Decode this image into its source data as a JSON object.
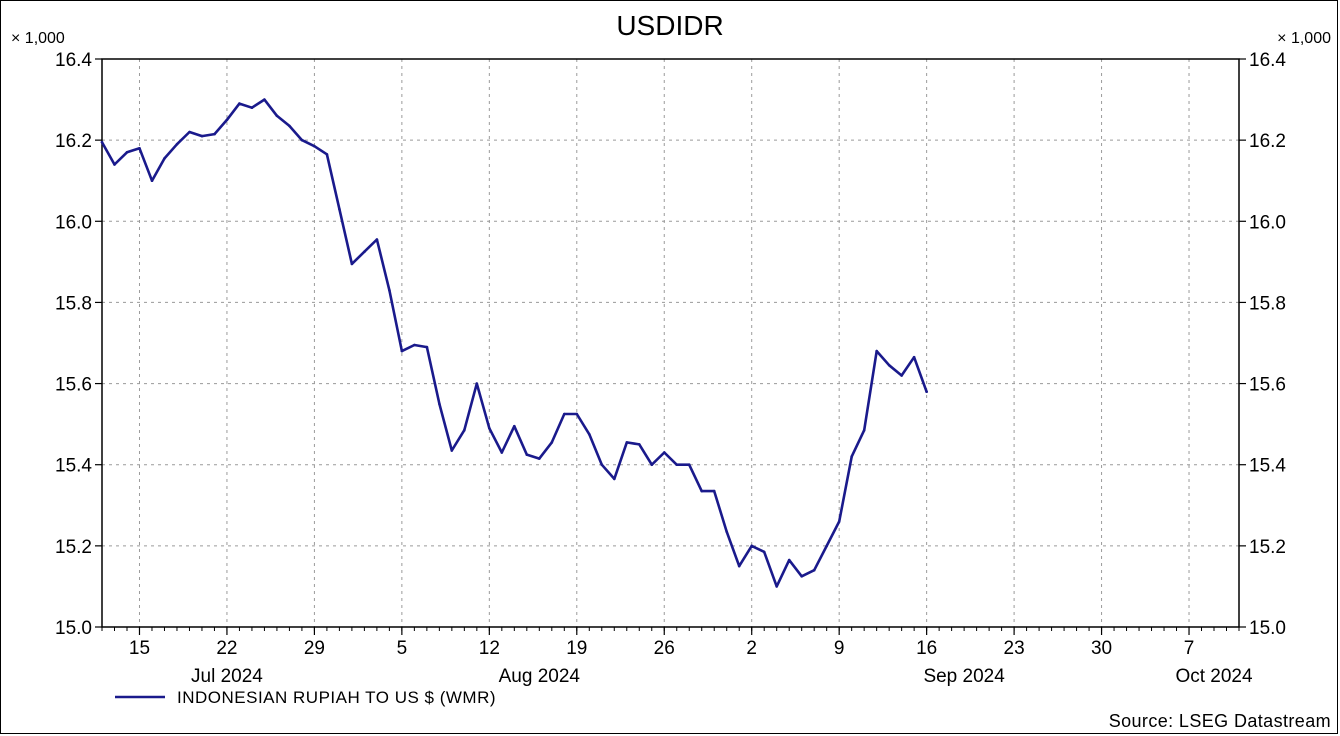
{
  "chart_data": {
    "type": "line",
    "title": "USDIDR",
    "y_multiplier_label": "× 1,000",
    "ylim": [
      15.0,
      16.4
    ],
    "y_ticks": [
      "15.0",
      "15.2",
      "15.4",
      "15.6",
      "15.8",
      "16.0",
      "16.2",
      "16.4"
    ],
    "x_day_ticks": [
      {
        "label": "15",
        "date": "2024-07-15"
      },
      {
        "label": "22",
        "date": "2024-07-22"
      },
      {
        "label": "29",
        "date": "2024-07-29"
      },
      {
        "label": "5",
        "date": "2024-08-05"
      },
      {
        "label": "12",
        "date": "2024-08-12"
      },
      {
        "label": "19",
        "date": "2024-08-19"
      },
      {
        "label": "26",
        "date": "2024-08-26"
      },
      {
        "label": "2",
        "date": "2024-09-02"
      },
      {
        "label": "9",
        "date": "2024-09-09"
      },
      {
        "label": "16",
        "date": "2024-09-16"
      },
      {
        "label": "23",
        "date": "2024-09-23"
      },
      {
        "label": "30",
        "date": "2024-09-30"
      },
      {
        "label": "7",
        "date": "2024-10-07"
      }
    ],
    "x_month_labels": [
      {
        "label": "Jul 2024",
        "date": "2024-07-22"
      },
      {
        "label": "Aug 2024",
        "date": "2024-08-16"
      },
      {
        "label": "Sep 2024",
        "date": "2024-09-19"
      },
      {
        "label": "Oct 2024",
        "date": "2024-10-09"
      }
    ],
    "x_range": [
      "2024-07-12",
      "2024-10-11"
    ],
    "grid": true,
    "legend_position": "bottom-left",
    "series": [
      {
        "name": "INDONESIAN RUPIAH TO US $ (WMR)",
        "color": "#1a1a8c",
        "points": [
          [
            "2024-07-12",
            16.195
          ],
          [
            "2024-07-13",
            16.14
          ],
          [
            "2024-07-14",
            16.17
          ],
          [
            "2024-07-15",
            16.18
          ],
          [
            "2024-07-16",
            16.1
          ],
          [
            "2024-07-17",
            16.155
          ],
          [
            "2024-07-18",
            16.19
          ],
          [
            "2024-07-19",
            16.22
          ],
          [
            "2024-07-20",
            16.21
          ],
          [
            "2024-07-21",
            16.215
          ],
          [
            "2024-07-22",
            16.25
          ],
          [
            "2024-07-23",
            16.29
          ],
          [
            "2024-07-24",
            16.28
          ],
          [
            "2024-07-25",
            16.3
          ],
          [
            "2024-07-26",
            16.26
          ],
          [
            "2024-07-27",
            16.235
          ],
          [
            "2024-07-28",
            16.2
          ],
          [
            "2024-07-29",
            16.185
          ],
          [
            "2024-07-30",
            16.165
          ],
          [
            "2024-07-31",
            16.03
          ],
          [
            "2024-08-01",
            15.895
          ],
          [
            "2024-08-02",
            15.925
          ],
          [
            "2024-08-03",
            15.955
          ],
          [
            "2024-08-04",
            15.83
          ],
          [
            "2024-08-05",
            15.68
          ],
          [
            "2024-08-06",
            15.695
          ],
          [
            "2024-08-07",
            15.69
          ],
          [
            "2024-08-08",
            15.55
          ],
          [
            "2024-08-09",
            15.435
          ],
          [
            "2024-08-10",
            15.485
          ],
          [
            "2024-08-11",
            15.6
          ],
          [
            "2024-08-12",
            15.49
          ],
          [
            "2024-08-13",
            15.43
          ],
          [
            "2024-08-14",
            15.495
          ],
          [
            "2024-08-15",
            15.425
          ],
          [
            "2024-08-16",
            15.415
          ],
          [
            "2024-08-17",
            15.455
          ],
          [
            "2024-08-18",
            15.525
          ],
          [
            "2024-08-19",
            15.525
          ],
          [
            "2024-08-20",
            15.475
          ],
          [
            "2024-08-21",
            15.4
          ],
          [
            "2024-08-22",
            15.365
          ],
          [
            "2024-08-23",
            15.455
          ],
          [
            "2024-08-24",
            15.45
          ],
          [
            "2024-08-25",
            15.4
          ],
          [
            "2024-08-26",
            15.43
          ],
          [
            "2024-08-27",
            15.4
          ],
          [
            "2024-08-28",
            15.4
          ],
          [
            "2024-08-29",
            15.335
          ],
          [
            "2024-08-30",
            15.335
          ],
          [
            "2024-08-31",
            15.235
          ],
          [
            "2024-09-01",
            15.15
          ],
          [
            "2024-09-02",
            15.2
          ],
          [
            "2024-09-03",
            15.185
          ],
          [
            "2024-09-04",
            15.1
          ],
          [
            "2024-09-05",
            15.165
          ],
          [
            "2024-09-06",
            15.125
          ],
          [
            "2024-09-07",
            15.14
          ],
          [
            "2024-09-08",
            15.2
          ],
          [
            "2024-09-09",
            15.26
          ],
          [
            "2024-09-10",
            15.42
          ],
          [
            "2024-09-11",
            15.485
          ],
          [
            "2024-09-12",
            15.68
          ],
          [
            "2024-09-13",
            15.645
          ],
          [
            "2024-09-14",
            15.62
          ],
          [
            "2024-09-15",
            15.665
          ],
          [
            "2024-09-16",
            15.58
          ]
        ]
      }
    ],
    "source_note": "Source: LSEG Datastream"
  }
}
